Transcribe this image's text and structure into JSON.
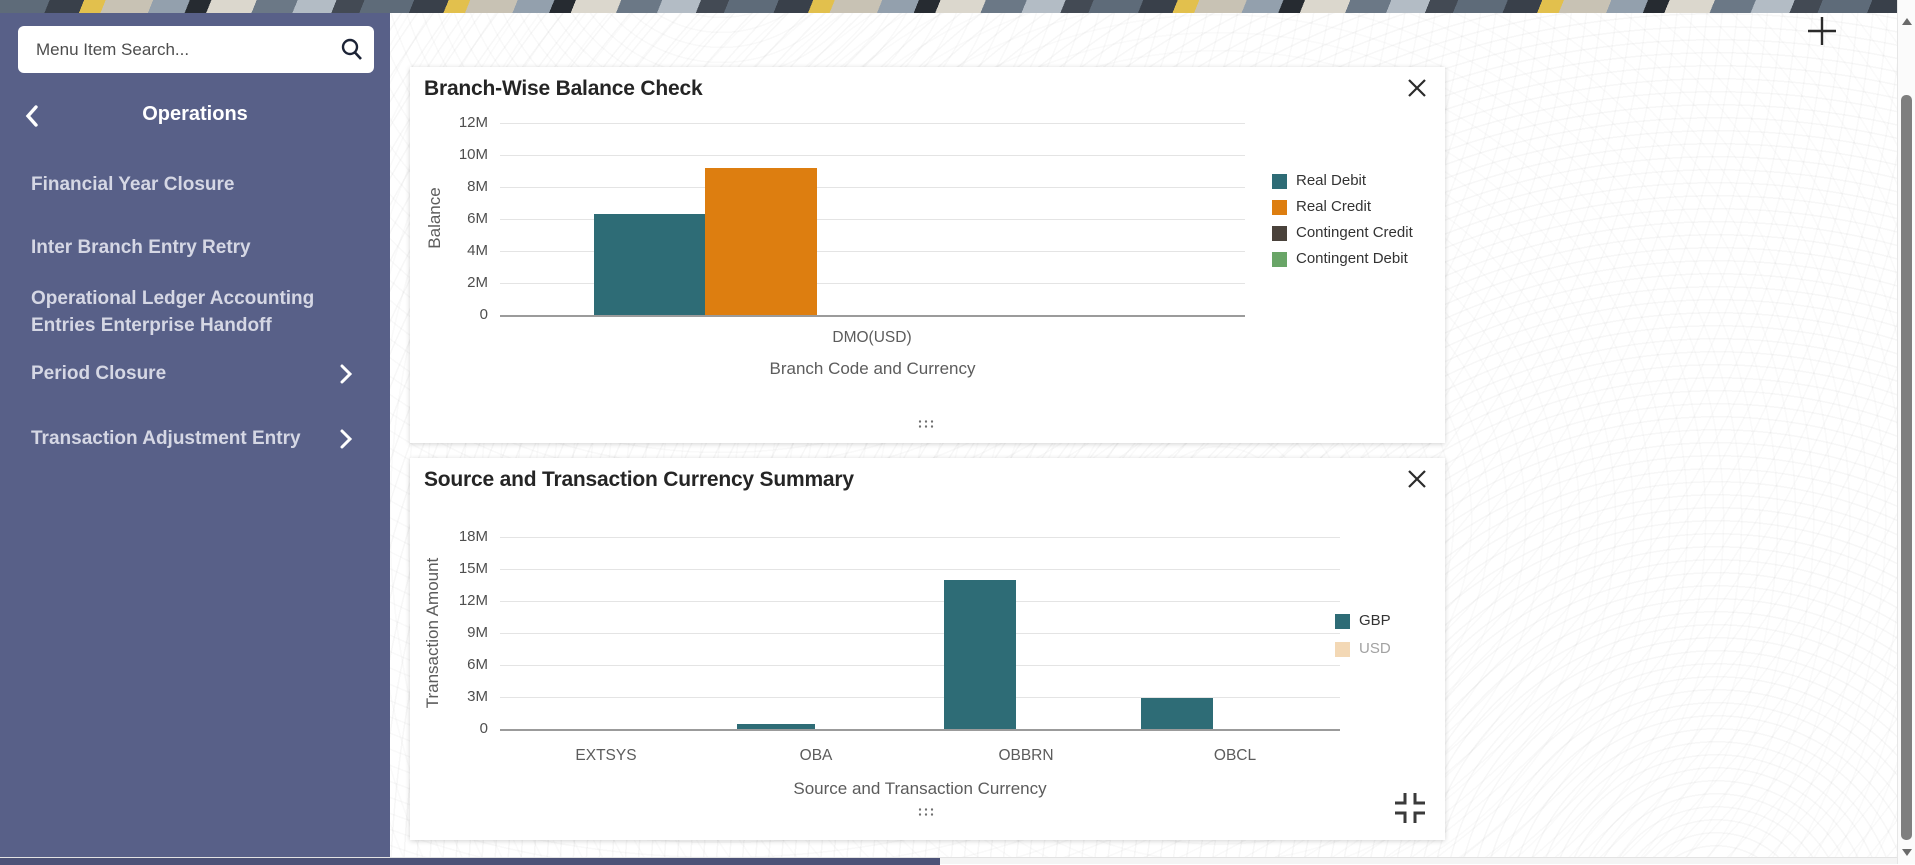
{
  "sidebar": {
    "search": {
      "placeholder": "Menu Item Search..."
    },
    "title": "Operations",
    "items": [
      {
        "label": "Financial Year Closure",
        "has_submenu": false
      },
      {
        "label": "Inter Branch Entry Retry",
        "has_submenu": false
      },
      {
        "label": "Operational Ledger Accounting Entries Enterprise Handoff",
        "has_submenu": false
      },
      {
        "label": "Period Closure",
        "has_submenu": true
      },
      {
        "label": "Transaction Adjustment Entry",
        "has_submenu": true
      }
    ]
  },
  "icons": {
    "search": "magnifier",
    "back": "chevron-left",
    "submenu": "chevron-right",
    "close": "x",
    "add_widget": "plus",
    "drag": "grip-dots",
    "resize": "collapse-corners",
    "scroll_up": "triangle-up",
    "scroll_down": "triangle-down"
  },
  "colors": {
    "sidebar_bg": "#586088",
    "real_debit_teal": "#2e6c76",
    "real_credit_orange": "#dd7e10",
    "contingent_credit_brown": "#4a423b",
    "contingent_debit_green": "#69a567",
    "usd_peach": "#f3d8b5"
  },
  "chart_data": [
    {
      "type": "bar",
      "title": "Branch-Wise Balance Check",
      "ylabel": "Balance",
      "xlabel": "Branch Code and Currency",
      "categories": [
        "DMO(USD)"
      ],
      "series": [
        {
          "name": "Real Debit",
          "color": "#2e6c76",
          "values": [
            6300000
          ],
          "active": true
        },
        {
          "name": "Real Credit",
          "color": "#dd7e10",
          "values": [
            9200000
          ],
          "active": true
        },
        {
          "name": "Contingent Credit",
          "color": "#4a423b",
          "values": [
            0
          ],
          "active": true
        },
        {
          "name": "Contingent Debit",
          "color": "#69a567",
          "values": [
            0
          ],
          "active": true
        }
      ],
      "ytick_labels": [
        "12M",
        "10M",
        "8M",
        "6M",
        "4M",
        "2M",
        "0"
      ],
      "ylim": [
        0,
        12000000
      ],
      "grid": true,
      "legend_position": "right"
    },
    {
      "type": "bar",
      "title": "Source and Transaction Currency Summary",
      "ylabel": "Transaction Amount",
      "xlabel": "Source and Transaction Currency",
      "categories": [
        "EXTSYS",
        "OBA",
        "OBBRN",
        "OBCL"
      ],
      "series": [
        {
          "name": "GBP",
          "color": "#2e6c76",
          "values": [
            0,
            500000,
            14000000,
            2900000
          ],
          "active": true
        },
        {
          "name": "USD",
          "color": "#f3d8b5",
          "values": [],
          "active": false
        }
      ],
      "ytick_labels": [
        "18M",
        "15M",
        "12M",
        "9M",
        "6M",
        "3M",
        "0"
      ],
      "ylim": [
        0,
        18000000
      ],
      "grid": true,
      "legend_position": "right"
    }
  ]
}
